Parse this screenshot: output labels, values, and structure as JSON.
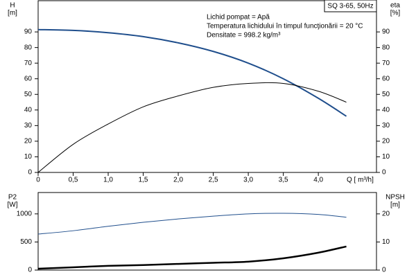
{
  "chart_data": [
    {
      "type": "line",
      "title": "SQ 3-65, 50Hz",
      "annotations": [
        "Lichid pompat = Apă",
        "Temperatura lichidului în timpul funcţionării = 20  °C",
        "Densitate = 998.2  kg/m³"
      ],
      "ylabel": [
        "H",
        "[m]"
      ],
      "y2label": [
        "eta",
        "[%]"
      ],
      "xlabel": "Q [ m³/h]",
      "x": [
        0,
        0.5,
        1.0,
        1.5,
        2.0,
        2.5,
        3.0,
        3.5,
        4.0,
        4.4
      ],
      "series": [
        {
          "name": "H",
          "color": "#1f4e8c",
          "linewidth": 2,
          "values": [
            91.5,
            91,
            89.5,
            87,
            83,
            77.5,
            70,
            60,
            47.5,
            36
          ]
        },
        {
          "name": "eta",
          "color": "#000000",
          "linewidth": 1,
          "axis": "y2",
          "values": [
            0,
            18,
            31,
            42,
            49,
            54.5,
            57,
            57,
            52,
            45
          ]
        }
      ],
      "xlim": [
        0,
        4.83
      ],
      "xticks": [
        0,
        {
          "value": 0.5,
          "label": "0,5"
        },
        {
          "value": 1.0,
          "label": "1,0"
        },
        {
          "value": 1.5,
          "label": "1,5"
        },
        {
          "value": 2.0,
          "label": "2,0"
        },
        {
          "value": 2.5,
          "label": "2,5"
        },
        {
          "value": 3.0,
          "label": "3,0"
        },
        {
          "value": 3.5,
          "label": "3,5"
        },
        {
          "value": 4.0,
          "label": "4,0"
        }
      ],
      "ylim": [
        0,
        110
      ],
      "yticks": [
        0,
        10,
        20,
        30,
        40,
        50,
        60,
        70,
        80,
        90
      ],
      "y2lim": [
        0,
        110
      ],
      "y2ticks": [
        0,
        10,
        20,
        30,
        40,
        50,
        60,
        70,
        80,
        90
      ]
    },
    {
      "type": "line",
      "ylabel": [
        "P2",
        "[W]"
      ],
      "y2label": [
        "NPSH",
        "[m]"
      ],
      "x": [
        0,
        0.5,
        1.0,
        1.5,
        2.0,
        2.5,
        3.0,
        3.5,
        4.0,
        4.4
      ],
      "series": [
        {
          "name": "P2",
          "color": "#1f4e8c",
          "linewidth": 1,
          "values": [
            640,
            700,
            780,
            850,
            910,
            960,
            1000,
            1010,
            990,
            940
          ]
        },
        {
          "name": "NPSH",
          "color": "#000000",
          "linewidth": 2.5,
          "axis": "y2",
          "values": [
            0.5,
            1.0,
            1.5,
            1.8,
            2.2,
            2.6,
            3.0,
            4.2,
            6.2,
            8.4
          ]
        }
      ],
      "xlim": [
        0,
        4.83
      ],
      "ylim": [
        0,
        1380
      ],
      "yticks": [
        0,
        500,
        1000
      ],
      "y2lim": [
        0,
        27.6
      ],
      "y2ticks": [
        0,
        10,
        20
      ]
    }
  ]
}
